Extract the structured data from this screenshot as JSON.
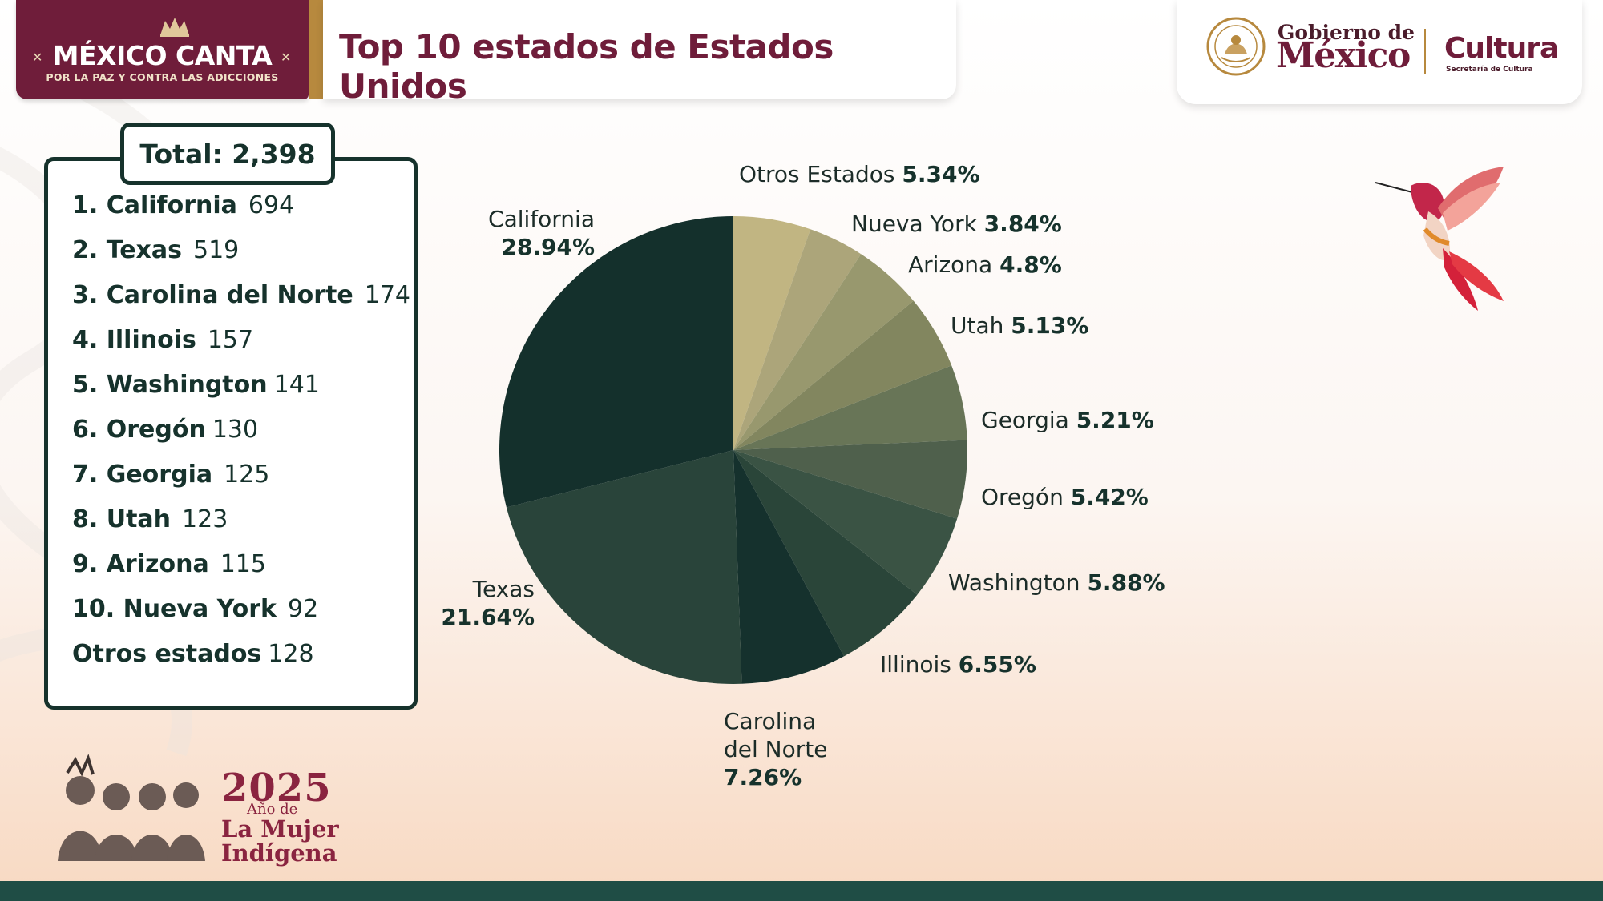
{
  "header": {
    "brand_title": "MÉXICO CANTA",
    "brand_subtitle": "POR LA PAZ Y CONTRA LAS ADICCIONES",
    "page_title": "Top 10 estados de Estados Unidos"
  },
  "gov": {
    "line1": "Gobierno de",
    "line2": "México",
    "cultura": "Cultura",
    "cultura_sub": "Secretaría de Cultura"
  },
  "summary": {
    "total_label": "Total: 2,398",
    "items": [
      {
        "name": "1. California",
        "count": "694"
      },
      {
        "name": "2. Texas",
        "count": "519"
      },
      {
        "name": "3. Carolina del Norte",
        "count": "174"
      },
      {
        "name": "4. Illinois",
        "count": "157"
      },
      {
        "name": "5. Washington",
        "count": "141"
      },
      {
        "name": "6. Oregón",
        "count": "130"
      },
      {
        "name": "7. Georgia",
        "count": "125"
      },
      {
        "name": "8. Utah",
        "count": "123"
      },
      {
        "name": "9. Arizona",
        "count": "115"
      },
      {
        "name": "10. Nueva York",
        "count": "92"
      },
      {
        "name": "Otros estados",
        "count": "128"
      }
    ]
  },
  "chart_data": {
    "type": "pie",
    "title": "Top 10 estados de Estados Unidos",
    "slices": [
      {
        "label": "Otros Estados",
        "value": 5.34,
        "value_label": "5.34%",
        "color": "#c1b582"
      },
      {
        "label": "Nueva York",
        "value": 3.84,
        "value_label": "3.84%",
        "color": "#aca57a"
      },
      {
        "label": "Arizona",
        "value": 4.8,
        "value_label": "4.8%",
        "color": "#98986e"
      },
      {
        "label": "Utah",
        "value": 5.13,
        "value_label": "5.13%",
        "color": "#82865f"
      },
      {
        "label": "Georgia",
        "value": 5.21,
        "value_label": "5.21%",
        "color": "#687557"
      },
      {
        "label": "Oregón",
        "value": 5.42,
        "value_label": "5.42%",
        "color": "#4f604c"
      },
      {
        "label": "Washington",
        "value": 5.88,
        "value_label": "5.88%",
        "color": "#3a5344"
      },
      {
        "label": "Illinois",
        "value": 6.55,
        "value_label": "6.55%",
        "color": "#2a4539"
      },
      {
        "label": "Carolina del Norte",
        "value": 7.26,
        "value_label": "7.26%",
        "color": "#15312d"
      },
      {
        "label": "Texas",
        "value": 21.64,
        "value_label": "21.64%",
        "color": "#29443a"
      },
      {
        "label": "California",
        "value": 28.94,
        "value_label": "28.94%",
        "color": "#14302c"
      }
    ],
    "labels": {
      "otros_name": "Otros Estados",
      "otros_pct": "5.34%",
      "ny_name": "Nueva York",
      "ny_pct": "3.84%",
      "az_name": "Arizona",
      "az_pct": "4.8%",
      "ut_name": "Utah",
      "ut_pct": "5.13%",
      "ga_name": "Georgia",
      "ga_pct": "5.21%",
      "or_name": "Oregón",
      "or_pct": "5.42%",
      "wa_name": "Washington",
      "wa_pct": "5.88%",
      "il_name": "Illinois",
      "il_pct": "6.55%",
      "nc_name_1": "Carolina",
      "nc_name_2": "del Norte",
      "nc_pct": "7.26%",
      "tx_name": "Texas",
      "tx_pct": "21.64%",
      "ca_name": "California",
      "ca_pct": "28.94%"
    }
  },
  "footer_logo": {
    "year": "2025",
    "line1": "Año de",
    "line2": "La Mujer",
    "line3": "Indígena"
  }
}
